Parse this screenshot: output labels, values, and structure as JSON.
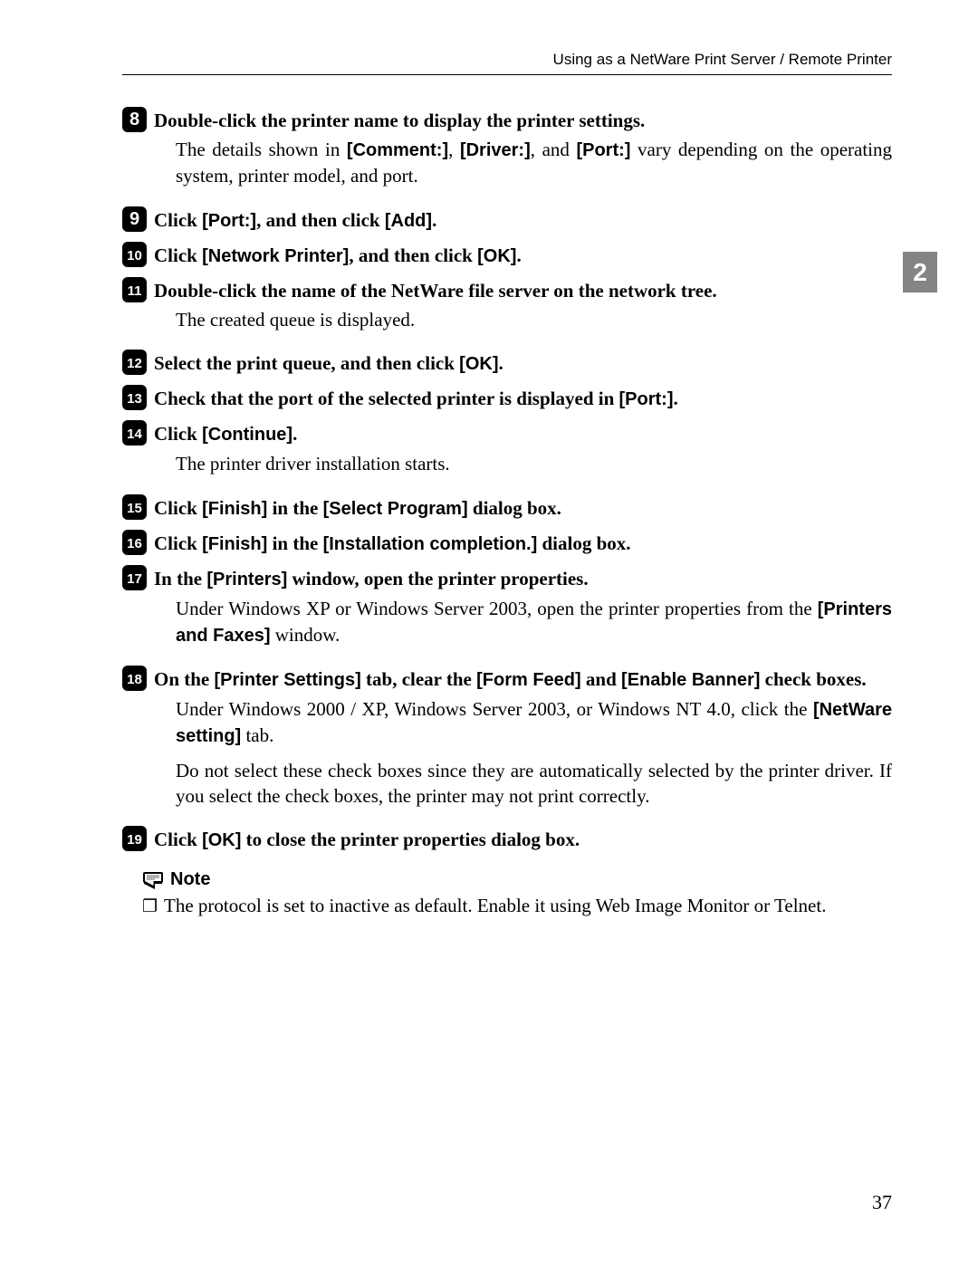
{
  "header": "Using as a NetWare Print Server / Remote Printer",
  "side_tab": "2",
  "page_number": "37",
  "colors": {
    "badge_bg": "#000000",
    "badge_fg": "#ffffff",
    "tab_bg": "#848484"
  },
  "steps": [
    {
      "num": "8",
      "head": [
        {
          "t": "Double-click the printer name to display the printer settings.",
          "ui": false
        }
      ],
      "content": [
        {
          "justify": true,
          "runs": [
            {
              "t": "The details shown in ",
              "ui": false
            },
            {
              "t": "[Comment:]",
              "ui": true
            },
            {
              "t": ", ",
              "ui": false
            },
            {
              "t": "[Driver:]",
              "ui": true
            },
            {
              "t": ", and ",
              "ui": false
            },
            {
              "t": "[Port:]",
              "ui": true
            },
            {
              "t": " vary depending on the operating system, printer model, and port.",
              "ui": false
            }
          ]
        }
      ]
    },
    {
      "num": "9",
      "head": [
        {
          "t": "Click ",
          "ui": false
        },
        {
          "t": "[Port:]",
          "ui": true
        },
        {
          "t": ", and then click ",
          "ui": false
        },
        {
          "t": "[Add]",
          "ui": true
        },
        {
          "t": ".",
          "ui": false
        }
      ],
      "content": []
    },
    {
      "num": "10",
      "head": [
        {
          "t": "Click ",
          "ui": false
        },
        {
          "t": "[Network Printer]",
          "ui": true
        },
        {
          "t": ", and then click ",
          "ui": false
        },
        {
          "t": "[OK]",
          "ui": true
        },
        {
          "t": ".",
          "ui": false
        }
      ],
      "content": []
    },
    {
      "num": "11",
      "head": [
        {
          "t": "Double-click the name of the NetWare file server on the network tree.",
          "ui": false
        }
      ],
      "content": [
        {
          "justify": false,
          "runs": [
            {
              "t": "The created queue is displayed.",
              "ui": false
            }
          ]
        }
      ]
    },
    {
      "num": "12",
      "head": [
        {
          "t": "Select the print queue, and then click ",
          "ui": false
        },
        {
          "t": "[OK]",
          "ui": true
        },
        {
          "t": ".",
          "ui": false
        }
      ],
      "content": []
    },
    {
      "num": "13",
      "head": [
        {
          "t": "Check that the port of the selected printer is displayed in ",
          "ui": false
        },
        {
          "t": "[Port:]",
          "ui": true
        },
        {
          "t": ".",
          "ui": false
        }
      ],
      "content": []
    },
    {
      "num": "14",
      "head": [
        {
          "t": "Click ",
          "ui": false
        },
        {
          "t": "[Continue]",
          "ui": true
        },
        {
          "t": ".",
          "ui": false
        }
      ],
      "content": [
        {
          "justify": false,
          "runs": [
            {
              "t": "The printer driver installation starts.",
              "ui": false
            }
          ]
        }
      ]
    },
    {
      "num": "15",
      "head": [
        {
          "t": "Click ",
          "ui": false
        },
        {
          "t": "[Finish]",
          "ui": true
        },
        {
          "t": " in the ",
          "ui": false
        },
        {
          "t": "[Select Program]",
          "ui": true
        },
        {
          "t": " dialog box.",
          "ui": false
        }
      ],
      "content": []
    },
    {
      "num": "16",
      "head": [
        {
          "t": "Click ",
          "ui": false
        },
        {
          "t": "[Finish]",
          "ui": true
        },
        {
          "t": " in the ",
          "ui": false
        },
        {
          "t": "[Installation completion.]",
          "ui": true
        },
        {
          "t": " dialog box.",
          "ui": false
        }
      ],
      "content": []
    },
    {
      "num": "17",
      "head": [
        {
          "t": "In the ",
          "ui": false
        },
        {
          "t": "[Printers]",
          "ui": true
        },
        {
          "t": " window, open the printer properties.",
          "ui": false
        }
      ],
      "content": [
        {
          "justify": true,
          "runs": [
            {
              "t": "Under Windows XP or Windows Server 2003, open the printer properties from the ",
              "ui": false
            },
            {
              "t": "[Printers and Faxes]",
              "ui": true
            },
            {
              "t": " window.",
              "ui": false
            }
          ]
        }
      ]
    },
    {
      "num": "18",
      "head_justify": true,
      "head": [
        {
          "t": "On the ",
          "ui": false
        },
        {
          "t": "[Printer Settings]",
          "ui": true
        },
        {
          "t": " tab, clear the ",
          "ui": false
        },
        {
          "t": "[Form Feed]",
          "ui": true
        },
        {
          "t": " and ",
          "ui": false
        },
        {
          "t": "[Enable Banner]",
          "ui": true
        },
        {
          "t": " check boxes.",
          "ui": false
        }
      ],
      "content": [
        {
          "justify": true,
          "runs": [
            {
              "t": "Under Windows 2000 / XP, Windows Server 2003, or Windows NT 4.0, click the ",
              "ui": false
            },
            {
              "t": "[NetWare setting]",
              "ui": true
            },
            {
              "t": " tab.",
              "ui": false
            }
          ]
        },
        {
          "justify": true,
          "runs": [
            {
              "t": "Do not select these check boxes since they are automatically selected by the printer driver. If you select the check boxes, the printer may not print correctly.",
              "ui": false
            }
          ]
        }
      ]
    },
    {
      "num": "19",
      "head": [
        {
          "t": "Click ",
          "ui": false
        },
        {
          "t": "[OK]",
          "ui": true
        },
        {
          "t": " to close the printer properties dialog box.",
          "ui": false
        }
      ],
      "content": []
    }
  ],
  "note": {
    "label": "Note",
    "bullet": "❐",
    "text": "The protocol is set to inactive as default. Enable it using Web Image Monitor or Telnet."
  }
}
